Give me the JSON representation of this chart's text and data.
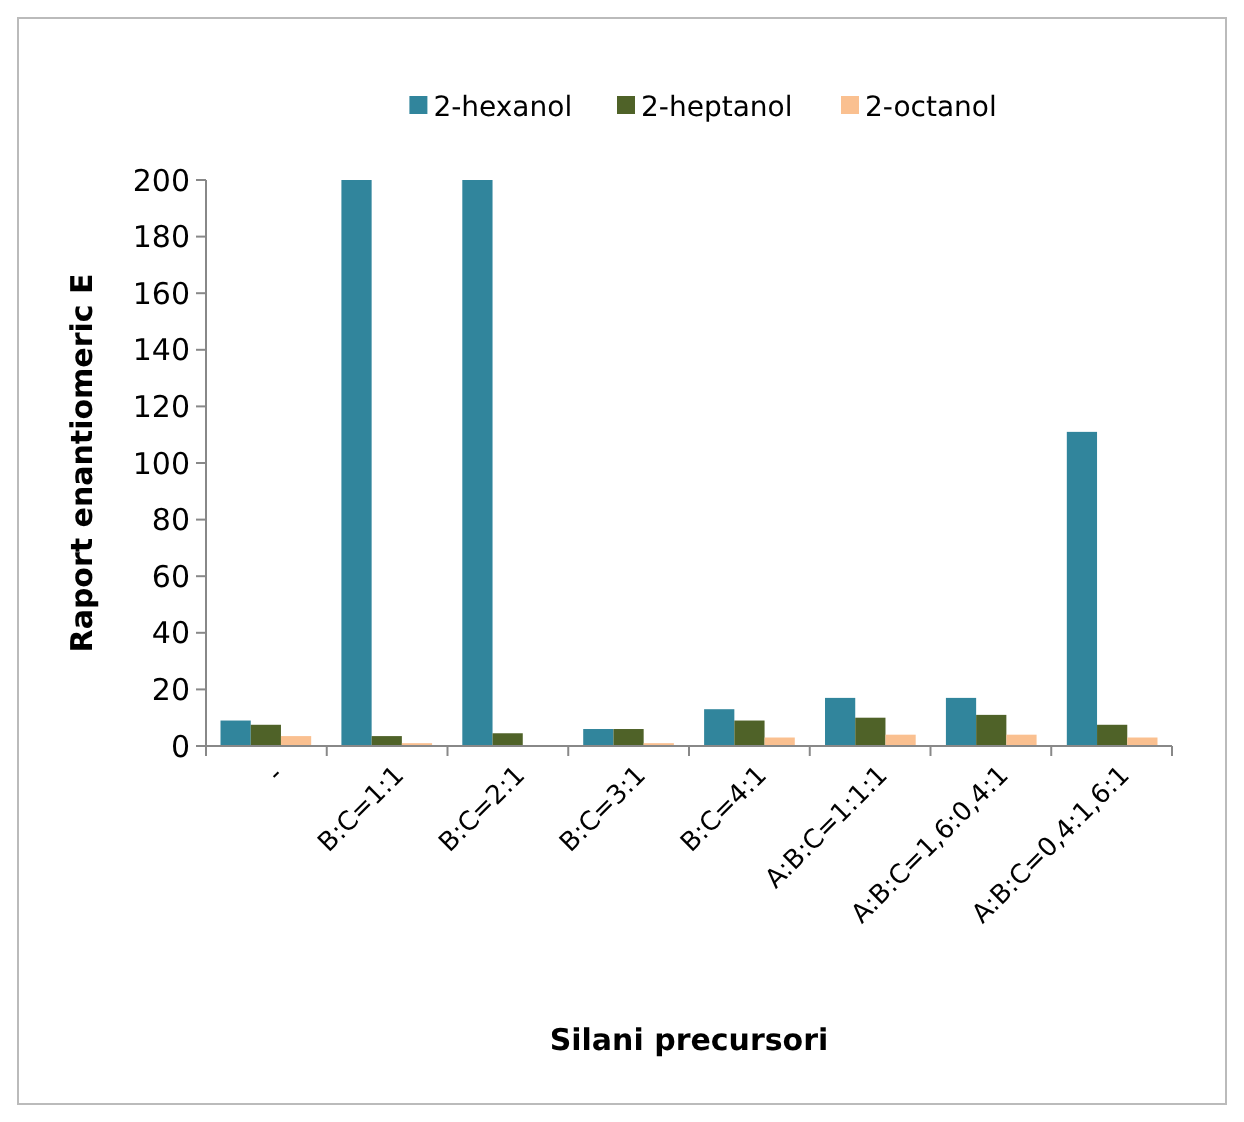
{
  "chart_data": {
    "type": "bar",
    "xlabel": "Silani precursori",
    "ylabel": "Raport enantiomeric E",
    "categories": [
      "-",
      "B:C=1:1",
      "B:C=2:1",
      "B:C=3:1",
      "B:C=4:1",
      "A:B:C=1:1:1",
      "A:B:C=1,6:0,4:1",
      "A:B:C=0,4:1,6:1"
    ],
    "series": [
      {
        "name": "2-hexanol",
        "color": "#31859c",
        "values": [
          9,
          200,
          200,
          6,
          13,
          17,
          17,
          111
        ]
      },
      {
        "name": "2-heptanol",
        "color": "#4f6228",
        "values": [
          7.5,
          3.5,
          4.5,
          6,
          9,
          10,
          11,
          7.5
        ]
      },
      {
        "name": "2-octanol",
        "color": "#fac090",
        "values": [
          3.5,
          1,
          null,
          1,
          3,
          4,
          4,
          3
        ]
      }
    ],
    "ylim": [
      0,
      200
    ],
    "yticks": [
      0,
      20,
      40,
      60,
      80,
      100,
      120,
      140,
      160,
      180,
      200
    ],
    "grid": false,
    "legend": "top"
  }
}
